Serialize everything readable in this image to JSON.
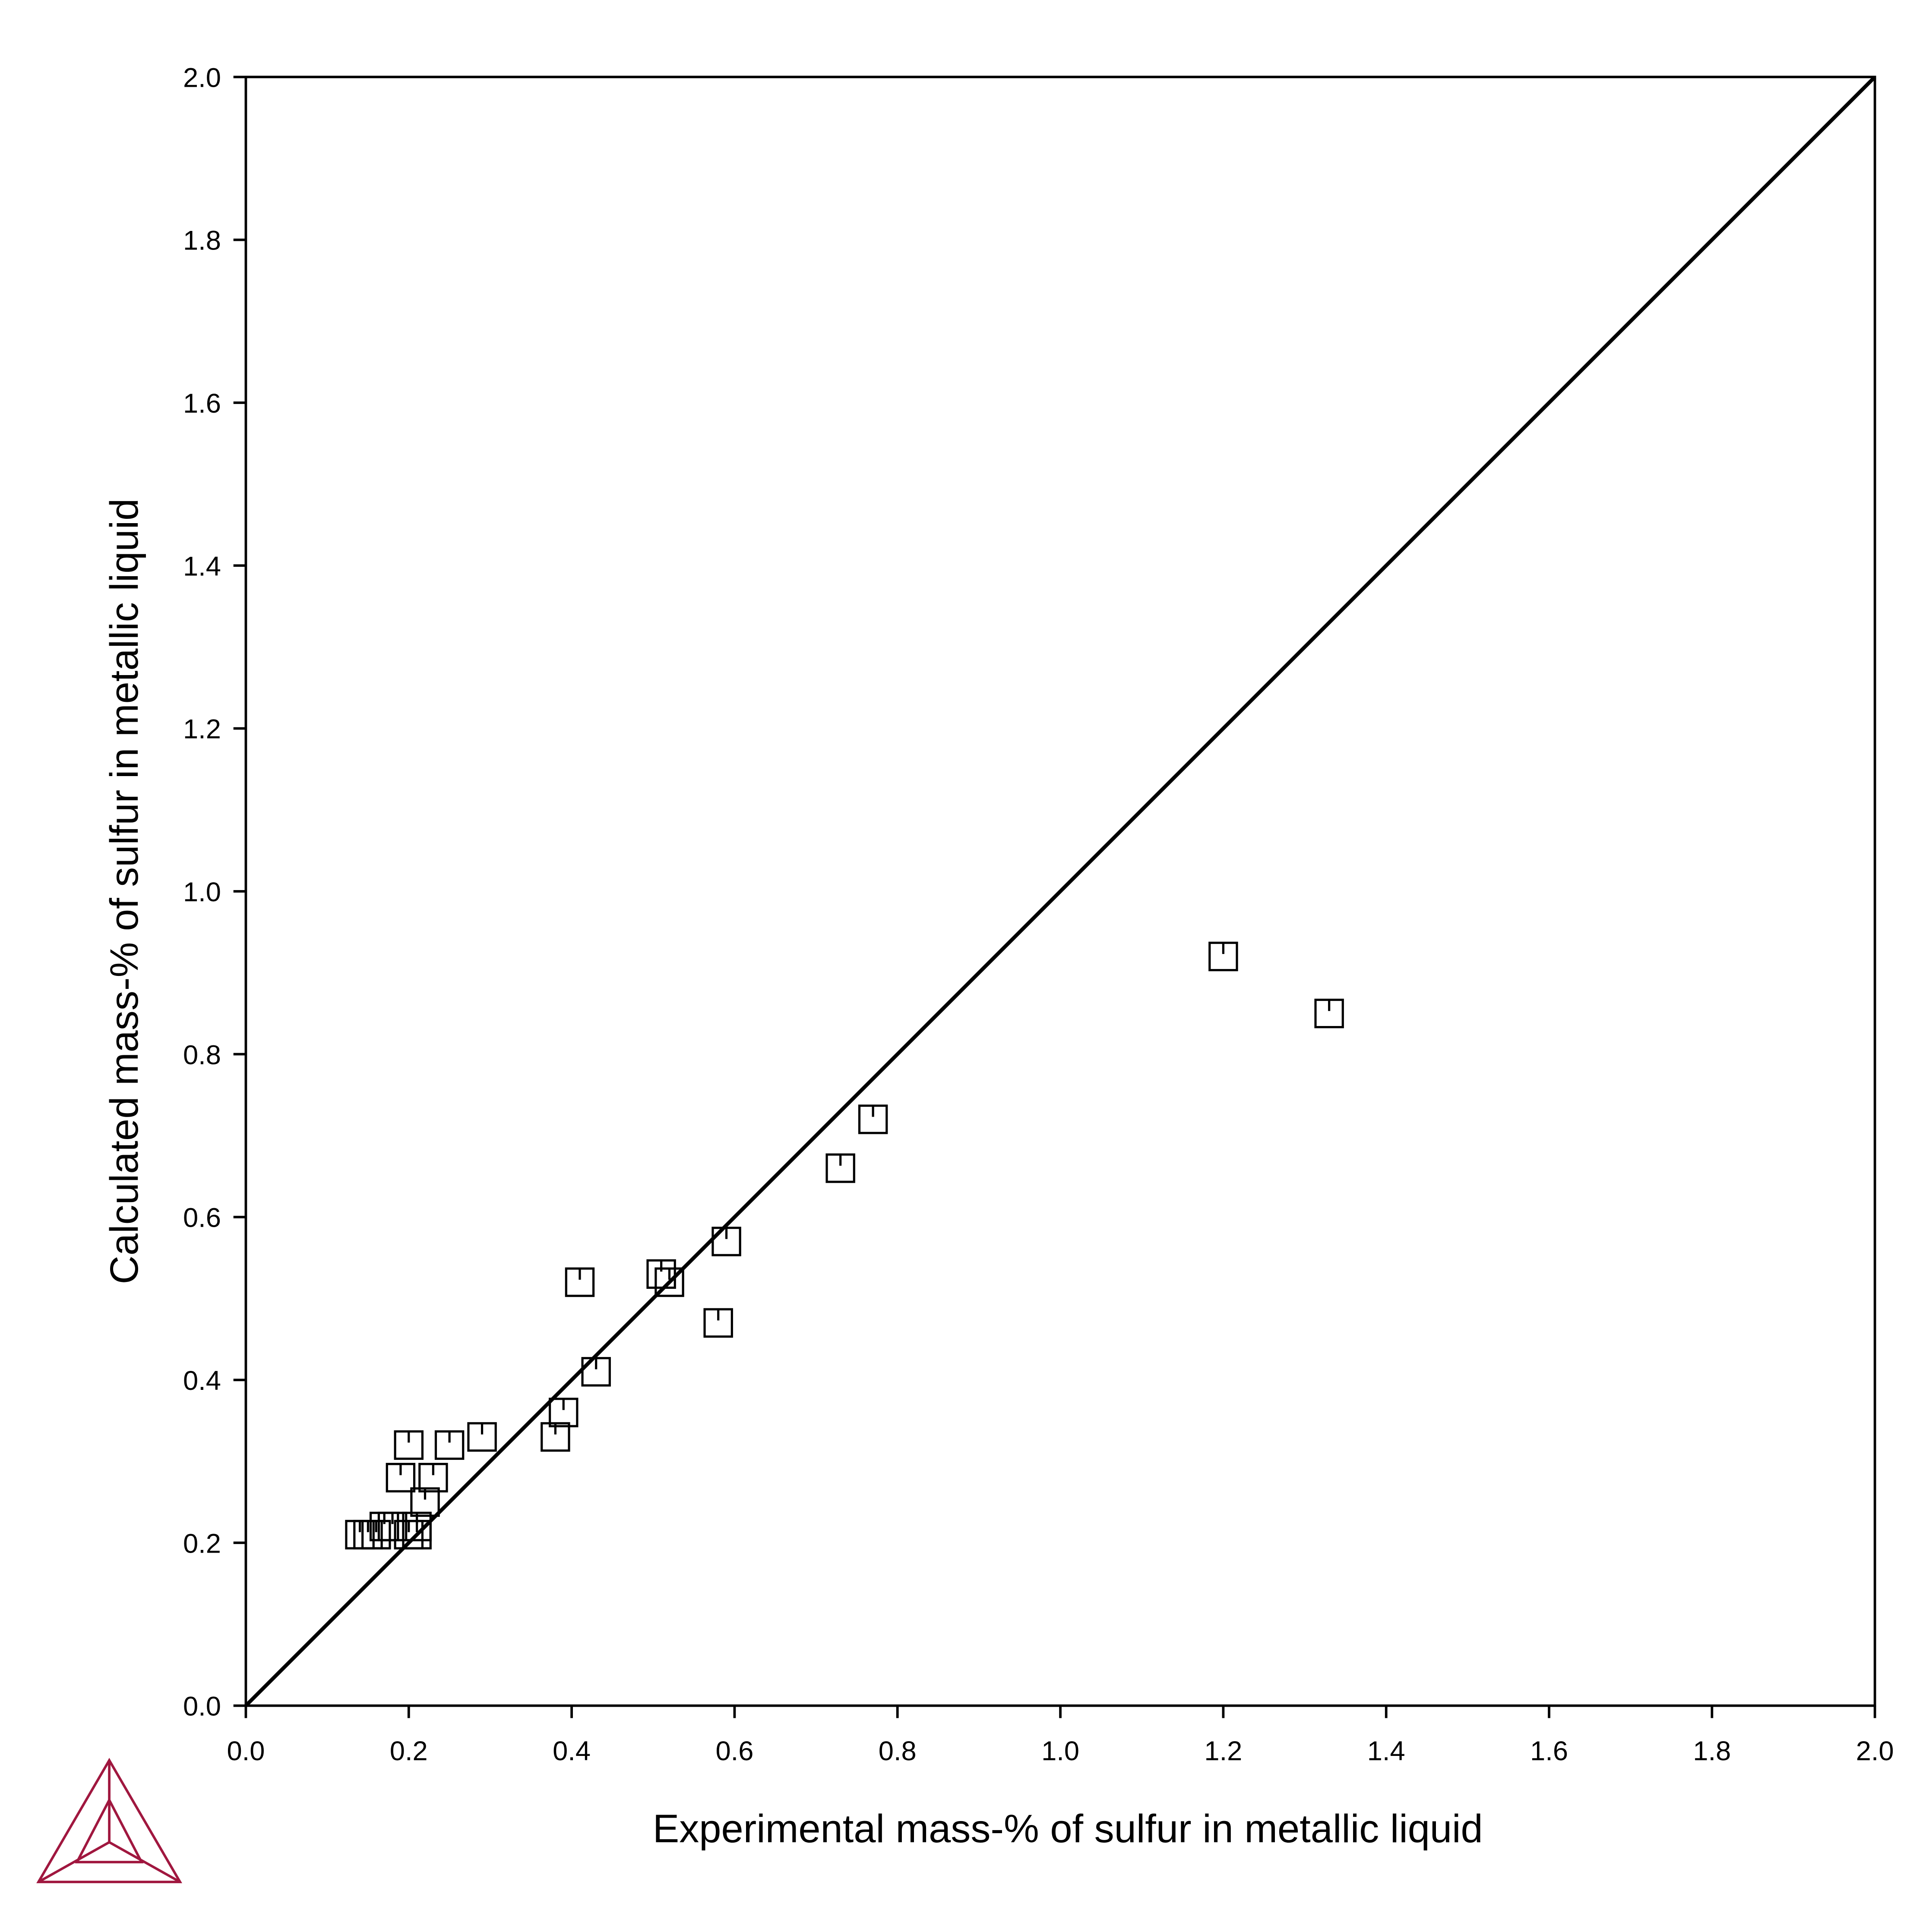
{
  "chart_data": {
    "type": "scatter",
    "x_label": "Experimental mass-% of sulfur in metallic liquid",
    "y_label": "Calculated mass-% of sulfur in metallic liquid",
    "x": [
      0.14,
      0.15,
      0.16,
      0.17,
      0.18,
      0.19,
      0.2,
      0.2,
      0.21,
      0.21,
      0.22,
      0.23,
      0.25,
      0.29,
      0.38,
      0.39,
      0.41,
      0.43,
      0.51,
      0.52,
      0.58,
      0.59,
      0.73,
      0.77,
      1.2,
      1.33
    ],
    "values": [
      0.21,
      0.21,
      0.21,
      0.22,
      0.22,
      0.28,
      0.32,
      0.21,
      0.22,
      0.21,
      0.25,
      0.28,
      0.32,
      0.33,
      0.33,
      0.36,
      0.52,
      0.41,
      0.53,
      0.52,
      0.47,
      0.57,
      0.66,
      0.72,
      0.92,
      0.85
    ],
    "color": "#000000",
    "diagonal": {
      "x": [
        0,
        2
      ],
      "y": [
        0,
        2
      ],
      "color": "#000000"
    },
    "xlim": [
      0,
      2
    ],
    "ylim": [
      0,
      2
    ],
    "xticks": [
      {
        "value": 0,
        "label": "0.0"
      },
      0.2,
      0.4,
      0.6,
      0.8,
      {
        "value": 1,
        "label": "1.0"
      },
      1.2,
      1.4,
      1.6,
      1.8,
      {
        "value": 2,
        "label": "2.0"
      }
    ],
    "yticks": [
      {
        "value": 0,
        "label": "0.0"
      },
      0.2,
      0.4,
      0.6,
      0.8,
      {
        "value": 1,
        "label": "1.0"
      },
      1.2,
      1.4,
      1.6,
      1.8,
      {
        "value": 2,
        "label": "2.0"
      }
    ],
    "grid": false
  }
}
